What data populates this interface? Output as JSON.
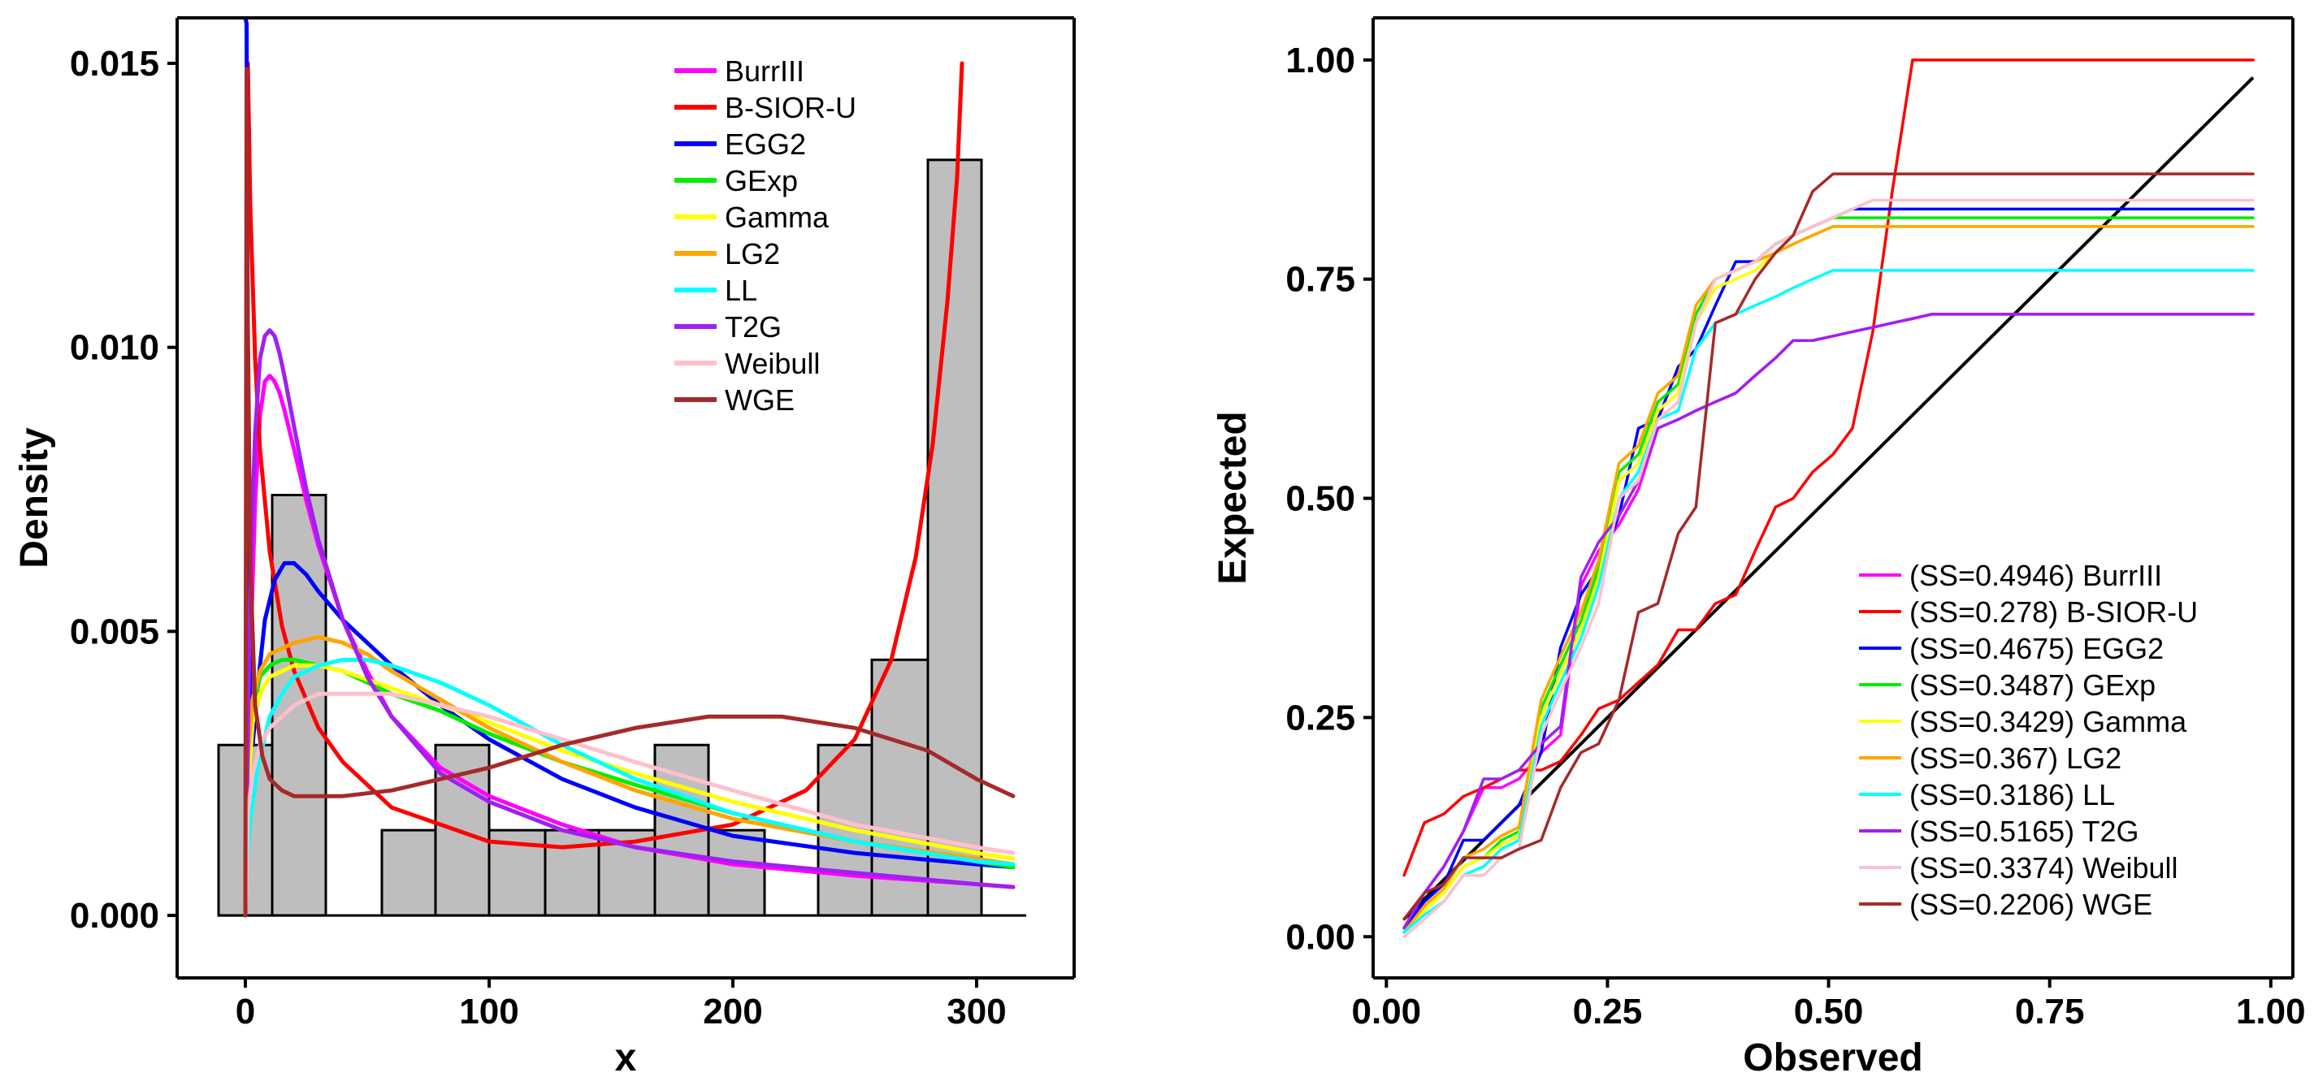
{
  "chart_data": [
    {
      "type": "histogram+density",
      "xlabel": "x",
      "ylabel": "Density",
      "xlim": [
        -28,
        340
      ],
      "ylim": [
        -0.0011,
        0.0158
      ],
      "xticks": [
        0,
        100,
        200,
        300
      ],
      "xtick_labels": [
        "0",
        "100",
        "200",
        "300"
      ],
      "yticks": [
        0.0,
        0.005,
        0.01,
        0.015
      ],
      "ytick_labels": [
        "0.000",
        "0.005",
        "0.010",
        "0.015"
      ],
      "legend_position": "top-right",
      "histogram": {
        "bin_edges": [
          -11,
          11,
          33,
          56,
          78,
          100,
          123,
          145,
          168,
          190,
          213,
          235,
          257,
          280,
          302
        ],
        "densities": [
          0.003,
          0.0074,
          0.0,
          0.0015,
          0.003,
          0.0015,
          0.0015,
          0.0015,
          0.003,
          0.0015,
          0.0,
          0.003,
          0.0045,
          0.0133
        ]
      },
      "series": [
        {
          "name": "BurrIII",
          "color": "#ff00ff",
          "x": [
            0,
            2,
            4,
            6,
            8,
            10,
            12,
            14,
            16,
            20,
            25,
            30,
            40,
            50,
            60,
            80,
            100,
            130,
            160,
            200,
            250,
            300,
            315
          ],
          "y": [
            0.0,
            0.0045,
            0.0073,
            0.0088,
            0.0094,
            0.0095,
            0.0094,
            0.0092,
            0.0089,
            0.0082,
            0.0073,
            0.0065,
            0.0052,
            0.0043,
            0.0035,
            0.0026,
            0.0021,
            0.0016,
            0.0012,
            0.0009,
            0.0007,
            0.00055,
            0.0005
          ]
        },
        {
          "name": "B-SIOR-U",
          "color": "#ff0000",
          "x": [
            1,
            2,
            4,
            6,
            10,
            15,
            20,
            30,
            40,
            60,
            80,
            100,
            130,
            160,
            200,
            230,
            250,
            265,
            275,
            282,
            288,
            292,
            294
          ],
          "y": [
            0.015,
            0.0125,
            0.0098,
            0.0082,
            0.0064,
            0.0051,
            0.0043,
            0.0033,
            0.0027,
            0.0019,
            0.0016,
            0.0013,
            0.0012,
            0.0013,
            0.0016,
            0.0022,
            0.0031,
            0.0045,
            0.0063,
            0.0083,
            0.0108,
            0.013,
            0.015
          ]
        },
        {
          "name": "EGG2",
          "color": "#0000ff",
          "x": [
            0,
            0.5,
            1,
            2,
            3,
            5,
            8,
            12,
            16,
            20,
            25,
            30,
            40,
            60,
            80,
            100,
            130,
            160,
            200,
            250,
            300,
            315
          ],
          "y": [
            0.0158,
            0.0157,
            0.0095,
            0.004,
            0.003,
            0.004,
            0.0052,
            0.0059,
            0.0062,
            0.0062,
            0.006,
            0.0057,
            0.0052,
            0.0044,
            0.0037,
            0.0031,
            0.0024,
            0.0019,
            0.0014,
            0.0011,
            0.0009,
            0.00085
          ]
        },
        {
          "name": "GExp",
          "color": "#00ee00",
          "x": [
            0,
            1,
            3,
            6,
            10,
            15,
            20,
            30,
            40,
            60,
            80,
            100,
            130,
            160,
            200,
            250,
            300,
            315
          ],
          "y": [
            0.0,
            0.0025,
            0.0036,
            0.0042,
            0.0044,
            0.0045,
            0.0045,
            0.0044,
            0.0043,
            0.0039,
            0.0036,
            0.0032,
            0.0027,
            0.0023,
            0.0018,
            0.0013,
            0.00095,
            0.00085
          ]
        },
        {
          "name": "Gamma",
          "color": "#ffff00",
          "x": [
            0,
            1,
            3,
            6,
            10,
            15,
            20,
            30,
            40,
            60,
            80,
            100,
            130,
            160,
            200,
            250,
            300,
            315
          ],
          "y": [
            0.0,
            0.0022,
            0.0034,
            0.0039,
            0.0042,
            0.0043,
            0.0044,
            0.0044,
            0.0043,
            0.004,
            0.0037,
            0.0034,
            0.0029,
            0.0025,
            0.002,
            0.0015,
            0.0011,
            0.001
          ]
        },
        {
          "name": "LG2",
          "color": "#ffa500",
          "x": [
            0,
            1,
            3,
            6,
            10,
            15,
            20,
            30,
            40,
            50,
            60,
            80,
            100,
            130,
            160,
            200,
            250,
            300,
            315
          ],
          "y": [
            0.0,
            0.0028,
            0.0038,
            0.0043,
            0.0046,
            0.0047,
            0.0048,
            0.0049,
            0.0048,
            0.0046,
            0.0043,
            0.0038,
            0.0033,
            0.0027,
            0.0022,
            0.0017,
            0.0013,
            0.001,
            0.0009
          ]
        },
        {
          "name": "LL",
          "color": "#00ffff",
          "x": [
            0,
            2,
            5,
            10,
            15,
            20,
            30,
            40,
            50,
            60,
            80,
            100,
            130,
            160,
            200,
            250,
            300,
            315
          ],
          "y": [
            0.0006,
            0.0017,
            0.0026,
            0.0035,
            0.0039,
            0.0042,
            0.0044,
            0.0045,
            0.0045,
            0.0044,
            0.0041,
            0.0037,
            0.003,
            0.0024,
            0.0018,
            0.0013,
            0.00095,
            0.0009
          ]
        },
        {
          "name": "T2G",
          "color": "#a020f0",
          "x": [
            0,
            2,
            4,
            6,
            8,
            10,
            12,
            14,
            16,
            20,
            25,
            30,
            40,
            50,
            60,
            80,
            100,
            130,
            160,
            200,
            250,
            300,
            315
          ],
          "y": [
            0.0,
            0.006,
            0.0085,
            0.0098,
            0.0102,
            0.0103,
            0.0102,
            0.0099,
            0.0095,
            0.0086,
            0.0075,
            0.0066,
            0.0052,
            0.0042,
            0.0035,
            0.0025,
            0.002,
            0.0015,
            0.0012,
            0.00095,
            0.00075,
            0.00055,
            0.0005
          ]
        },
        {
          "name": "Weibull",
          "color": "#ffc0cb",
          "x": [
            0,
            1,
            3,
            6,
            10,
            20,
            30,
            40,
            50,
            60,
            80,
            100,
            130,
            160,
            200,
            250,
            300,
            315
          ],
          "y": [
            0.0,
            0.0018,
            0.0025,
            0.003,
            0.0033,
            0.0037,
            0.0039,
            0.0039,
            0.0039,
            0.0039,
            0.0037,
            0.0035,
            0.0031,
            0.0027,
            0.0022,
            0.0016,
            0.0012,
            0.0011
          ]
        },
        {
          "name": "WGE",
          "color": "#a52a2a",
          "x": [
            0,
            0.5,
            1,
            2,
            4,
            7,
            10,
            15,
            20,
            30,
            40,
            60,
            80,
            100,
            130,
            160,
            190,
            220,
            250,
            280,
            300,
            315
          ],
          "y": [
            0.0,
            0.0149,
            0.0105,
            0.0062,
            0.0037,
            0.0028,
            0.0024,
            0.0022,
            0.0021,
            0.0021,
            0.0021,
            0.0022,
            0.0024,
            0.0026,
            0.003,
            0.0033,
            0.0035,
            0.0035,
            0.0033,
            0.0029,
            0.0024,
            0.0021
          ]
        }
      ]
    },
    {
      "type": "line",
      "xlabel": "Observed",
      "ylabel": "Expected",
      "xlim": [
        -0.015,
        1.025
      ],
      "ylim": [
        -0.047,
        1.048
      ],
      "xticks": [
        0.0,
        0.25,
        0.5,
        0.75,
        1.0
      ],
      "xtick_labels": [
        "0.00",
        "0.25",
        "0.50",
        "0.75",
        "1.00"
      ],
      "yticks": [
        0.0,
        0.25,
        0.5,
        0.75,
        1.0
      ],
      "ytick_labels": [
        "0.00",
        "0.25",
        "0.50",
        "0.75",
        "1.00"
      ],
      "legend_position": "bottom-right",
      "x": [
        0.02,
        0.043,
        0.065,
        0.087,
        0.11,
        0.13,
        0.15,
        0.175,
        0.197,
        0.22,
        0.24,
        0.263,
        0.285,
        0.307,
        0.33,
        0.35,
        0.372,
        0.395,
        0.417,
        0.44,
        0.46,
        0.482,
        0.505,
        0.527,
        0.55,
        0.572,
        0.595,
        0.617,
        0.64,
        0.66,
        0.682,
        0.705,
        0.727,
        0.75,
        0.98
      ],
      "reference_line": {
        "name": "identity",
        "color": "#000000",
        "x": [
          0.02,
          0.98
        ],
        "y": [
          0.02,
          0.98
        ]
      },
      "series": [
        {
          "name": "BurrIII",
          "label": "(SS=0.4946) BurrIII",
          "color": "#ff00ff",
          "y": [
            0.01,
            0.05,
            0.08,
            0.12,
            0.17,
            0.17,
            0.18,
            0.21,
            0.23,
            0.4,
            0.44,
            0.47,
            0.51,
            0.58,
            0.59,
            0.6,
            0.61,
            0.62,
            0.64,
            0.66,
            0.68,
            0.68,
            0.685,
            0.69,
            0.695,
            0.7,
            0.705,
            0.71,
            0.71,
            0.71,
            0.71,
            0.71,
            0.71,
            0.71,
            0.71
          ]
        },
        {
          "name": "B-SIOR-U",
          "label": "(SS=0.278) B-SIOR-U",
          "color": "#ff0000",
          "y": [
            0.07,
            0.13,
            0.14,
            0.16,
            0.17,
            0.18,
            0.19,
            0.19,
            0.2,
            0.23,
            0.26,
            0.27,
            0.29,
            0.31,
            0.35,
            0.35,
            0.38,
            0.39,
            0.44,
            0.49,
            0.5,
            0.53,
            0.55,
            0.58,
            0.69,
            0.85,
            1.0,
            1.0,
            1.0,
            1.0,
            1.0,
            1.0,
            1.0,
            1.0,
            1.0
          ]
        },
        {
          "name": "EGG2",
          "label": "(SS=0.4675) EGG2",
          "color": "#0000ff",
          "y": [
            0.01,
            0.04,
            0.06,
            0.11,
            0.11,
            0.13,
            0.15,
            0.21,
            0.33,
            0.39,
            0.42,
            0.48,
            0.58,
            0.59,
            0.65,
            0.67,
            0.72,
            0.77,
            0.77,
            0.79,
            0.8,
            0.81,
            0.82,
            0.83,
            0.83,
            0.83,
            0.83,
            0.83,
            0.83,
            0.83,
            0.83,
            0.83,
            0.83,
            0.83,
            0.83
          ]
        },
        {
          "name": "GExp",
          "label": "(SS=0.3487) GExp",
          "color": "#00ee00",
          "y": [
            0.005,
            0.03,
            0.05,
            0.08,
            0.09,
            0.11,
            0.12,
            0.26,
            0.31,
            0.36,
            0.42,
            0.53,
            0.55,
            0.61,
            0.63,
            0.71,
            0.75,
            0.76,
            0.77,
            0.79,
            0.8,
            0.81,
            0.82,
            0.82,
            0.82,
            0.82,
            0.82,
            0.82,
            0.82,
            0.82,
            0.82,
            0.82,
            0.82,
            0.82,
            0.82
          ]
        },
        {
          "name": "Gamma",
          "label": "(SS=0.3429) Gamma",
          "color": "#ffff00",
          "y": [
            0.005,
            0.03,
            0.05,
            0.08,
            0.09,
            0.105,
            0.115,
            0.25,
            0.3,
            0.35,
            0.41,
            0.52,
            0.54,
            0.6,
            0.62,
            0.7,
            0.74,
            0.75,
            0.76,
            0.78,
            0.79,
            0.8,
            0.81,
            0.81,
            0.81,
            0.81,
            0.81,
            0.81,
            0.81,
            0.81,
            0.81,
            0.81,
            0.81,
            0.81,
            0.81
          ]
        },
        {
          "name": "LG2",
          "label": "(SS=0.367) LG2",
          "color": "#ffa500",
          "y": [
            0.005,
            0.035,
            0.055,
            0.09,
            0.1,
            0.115,
            0.125,
            0.27,
            0.32,
            0.37,
            0.43,
            0.54,
            0.56,
            0.62,
            0.64,
            0.72,
            0.75,
            0.76,
            0.77,
            0.78,
            0.79,
            0.8,
            0.81,
            0.81,
            0.81,
            0.81,
            0.81,
            0.81,
            0.81,
            0.81,
            0.81,
            0.81,
            0.81,
            0.81,
            0.81
          ]
        },
        {
          "name": "LL",
          "label": "(SS=0.3186) LL",
          "color": "#00ffff",
          "y": [
            0.005,
            0.025,
            0.04,
            0.07,
            0.08,
            0.1,
            0.11,
            0.24,
            0.29,
            0.34,
            0.4,
            0.5,
            0.53,
            0.59,
            0.6,
            0.67,
            0.7,
            0.71,
            0.72,
            0.73,
            0.74,
            0.75,
            0.76,
            0.76,
            0.76,
            0.76,
            0.76,
            0.76,
            0.76,
            0.76,
            0.76,
            0.76,
            0.76,
            0.76,
            0.76
          ]
        },
        {
          "name": "T2G",
          "label": "(SS=0.5165) T2G",
          "color": "#a020f0",
          "y": [
            0.01,
            0.05,
            0.08,
            0.12,
            0.18,
            0.18,
            0.19,
            0.22,
            0.24,
            0.41,
            0.45,
            0.48,
            0.52,
            0.58,
            0.59,
            0.6,
            0.61,
            0.62,
            0.64,
            0.66,
            0.68,
            0.68,
            0.685,
            0.69,
            0.695,
            0.7,
            0.705,
            0.71,
            0.71,
            0.71,
            0.71,
            0.71,
            0.71,
            0.71,
            0.71
          ]
        },
        {
          "name": "Weibull",
          "label": "(SS=0.3374) Weibull",
          "color": "#ffc0cb",
          "y": [
            0.0,
            0.02,
            0.04,
            0.07,
            0.07,
            0.09,
            0.1,
            0.23,
            0.28,
            0.33,
            0.38,
            0.5,
            0.52,
            0.59,
            0.61,
            0.7,
            0.75,
            0.76,
            0.77,
            0.79,
            0.8,
            0.81,
            0.82,
            0.83,
            0.84,
            0.84,
            0.84,
            0.84,
            0.84,
            0.84,
            0.84,
            0.84,
            0.84,
            0.84,
            0.84
          ]
        },
        {
          "name": "WGE",
          "label": "(SS=0.2206) WGE",
          "color": "#a52a2a",
          "y": [
            0.02,
            0.05,
            0.06,
            0.09,
            0.09,
            0.09,
            0.1,
            0.11,
            0.17,
            0.21,
            0.22,
            0.27,
            0.37,
            0.38,
            0.46,
            0.49,
            0.7,
            0.71,
            0.75,
            0.78,
            0.8,
            0.85,
            0.87,
            0.87,
            0.87,
            0.87,
            0.87,
            0.87,
            0.87,
            0.87,
            0.87,
            0.87,
            0.87,
            0.87,
            0.87
          ]
        }
      ]
    }
  ]
}
